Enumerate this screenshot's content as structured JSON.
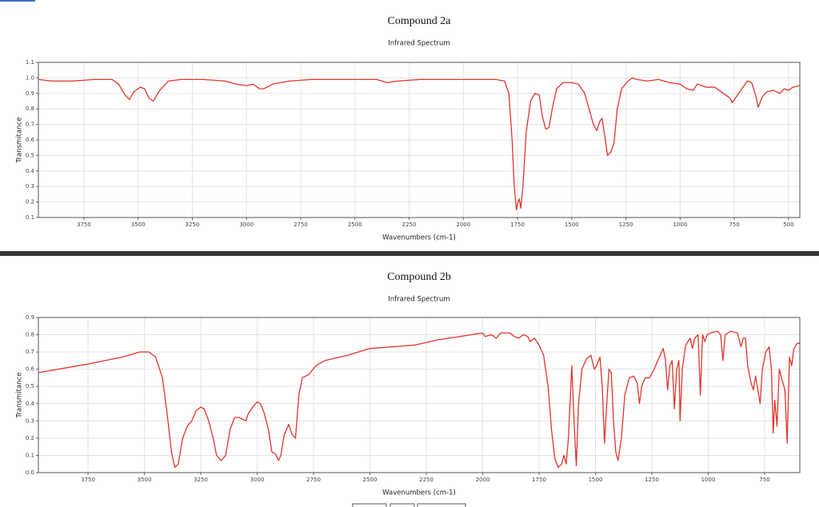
{
  "chart_data": [
    {
      "type": "line",
      "title": "Compound 2a",
      "subtitle": "Infrared Spectrum",
      "x_label": "Wavenumbers (cm-1)",
      "y_label": "Transmitance",
      "color": "#e0352b",
      "grid": true,
      "xlim": [
        3960,
        448
      ],
      "ylim": [
        0.1,
        1.1
      ],
      "xticks": [
        3750,
        3500,
        3250,
        3000,
        2750,
        2500,
        2250,
        2000,
        1750,
        1500,
        1250,
        1000,
        750,
        500
      ],
      "yticks": [
        0.1,
        0.2,
        0.3,
        0.4,
        0.5,
        0.6,
        0.7,
        0.8,
        0.9,
        {
          "value": 1,
          "label": "1.0"
        },
        1.1
      ],
      "x": [
        3960,
        3900,
        3800,
        3700,
        3620,
        3590,
        3560,
        3540,
        3520,
        3490,
        3470,
        3450,
        3430,
        3400,
        3360,
        3300,
        3200,
        3100,
        3050,
        3000,
        2970,
        2940,
        2920,
        2880,
        2800,
        2700,
        2500,
        2400,
        2350,
        2300,
        2200,
        2000,
        1850,
        1810,
        1790,
        1775,
        1765,
        1755,
        1748,
        1742,
        1735,
        1725,
        1710,
        1690,
        1670,
        1650,
        1635,
        1620,
        1605,
        1590,
        1570,
        1540,
        1500,
        1470,
        1440,
        1420,
        1400,
        1385,
        1370,
        1360,
        1345,
        1335,
        1320,
        1305,
        1290,
        1270,
        1240,
        1220,
        1200,
        1150,
        1100,
        1050,
        1000,
        970,
        940,
        920,
        880,
        840,
        800,
        770,
        760,
        730,
        700,
        690,
        670,
        650,
        640,
        620,
        600,
        570,
        540,
        520,
        500,
        480,
        450
      ],
      "values": [
        0.99,
        0.98,
        0.98,
        0.99,
        0.99,
        0.96,
        0.89,
        0.86,
        0.91,
        0.94,
        0.93,
        0.87,
        0.85,
        0.92,
        0.98,
        0.99,
        0.99,
        0.98,
        0.96,
        0.95,
        0.96,
        0.93,
        0.93,
        0.96,
        0.98,
        0.99,
        0.99,
        0.99,
        0.97,
        0.98,
        0.99,
        0.99,
        0.99,
        0.98,
        0.9,
        0.6,
        0.3,
        0.15,
        0.2,
        0.22,
        0.16,
        0.3,
        0.65,
        0.85,
        0.9,
        0.89,
        0.75,
        0.67,
        0.68,
        0.8,
        0.93,
        0.97,
        0.97,
        0.96,
        0.9,
        0.8,
        0.7,
        0.66,
        0.72,
        0.74,
        0.6,
        0.5,
        0.52,
        0.58,
        0.8,
        0.93,
        0.98,
        1.0,
        0.99,
        0.98,
        0.99,
        0.97,
        0.96,
        0.93,
        0.92,
        0.96,
        0.94,
        0.94,
        0.9,
        0.87,
        0.84,
        0.9,
        0.96,
        0.98,
        0.97,
        0.88,
        0.81,
        0.88,
        0.91,
        0.92,
        0.9,
        0.93,
        0.92,
        0.94,
        0.95
      ]
    },
    {
      "type": "line",
      "title": "Compound 2b",
      "subtitle": "Infrared Spectrum",
      "x_label": "Wavenumbers (cm-1)",
      "y_label": "Transmitance",
      "color": "#e0352b",
      "grid": true,
      "xlim": [
        3970,
        594
      ],
      "ylim": [
        0,
        0.9
      ],
      "xticks": [
        3750,
        3500,
        3250,
        3000,
        2750,
        2500,
        2250,
        2000,
        1750,
        1500,
        1250,
        1000,
        750
      ],
      "yticks": [
        {
          "value": 0,
          "label": "0.0"
        },
        0.1,
        0.2,
        0.3,
        0.4,
        0.5,
        0.6,
        0.7,
        0.8,
        0.9
      ],
      "x": [
        3970,
        3750,
        3600,
        3520,
        3480,
        3450,
        3420,
        3400,
        3380,
        3365,
        3350,
        3330,
        3310,
        3290,
        3270,
        3250,
        3235,
        3215,
        3195,
        3180,
        3160,
        3140,
        3120,
        3100,
        3080,
        3050,
        3040,
        3020,
        3000,
        2985,
        2970,
        2950,
        2935,
        2920,
        2905,
        2895,
        2880,
        2860,
        2845,
        2830,
        2815,
        2800,
        2770,
        2740,
        2700,
        2600,
        2500,
        2300,
        2200,
        2100,
        2000,
        1990,
        1960,
        1940,
        1920,
        1880,
        1860,
        1840,
        1820,
        1800,
        1790,
        1770,
        1750,
        1730,
        1710,
        1695,
        1680,
        1665,
        1650,
        1640,
        1630,
        1620,
        1605,
        1595,
        1585,
        1575,
        1560,
        1540,
        1520,
        1505,
        1495,
        1480,
        1470,
        1460,
        1450,
        1440,
        1430,
        1420,
        1410,
        1400,
        1385,
        1370,
        1350,
        1330,
        1315,
        1305,
        1295,
        1280,
        1260,
        1240,
        1220,
        1200,
        1190,
        1180,
        1170,
        1160,
        1150,
        1140,
        1130,
        1125,
        1115,
        1100,
        1080,
        1070,
        1060,
        1045,
        1035,
        1025,
        1015,
        1005,
        990,
        960,
        945,
        935,
        925,
        900,
        870,
        855,
        845,
        835,
        825,
        810,
        800,
        790,
        780,
        770,
        760,
        745,
        730,
        720,
        712,
        705,
        695,
        685,
        675,
        660,
        650,
        640,
        630,
        620,
        605,
        594
      ],
      "values": [
        0.58,
        0.63,
        0.67,
        0.7,
        0.7,
        0.67,
        0.55,
        0.35,
        0.12,
        0.03,
        0.05,
        0.2,
        0.27,
        0.3,
        0.36,
        0.38,
        0.37,
        0.3,
        0.2,
        0.1,
        0.07,
        0.1,
        0.25,
        0.32,
        0.32,
        0.3,
        0.34,
        0.38,
        0.41,
        0.4,
        0.35,
        0.25,
        0.12,
        0.11,
        0.07,
        0.1,
        0.22,
        0.28,
        0.22,
        0.2,
        0.45,
        0.55,
        0.57,
        0.62,
        0.65,
        0.68,
        0.72,
        0.74,
        0.77,
        0.79,
        0.81,
        0.79,
        0.8,
        0.78,
        0.81,
        0.81,
        0.79,
        0.78,
        0.8,
        0.79,
        0.76,
        0.78,
        0.74,
        0.68,
        0.5,
        0.25,
        0.08,
        0.03,
        0.05,
        0.1,
        0.05,
        0.2,
        0.62,
        0.3,
        0.04,
        0.4,
        0.6,
        0.66,
        0.68,
        0.6,
        0.62,
        0.67,
        0.5,
        0.17,
        0.4,
        0.6,
        0.58,
        0.3,
        0.12,
        0.07,
        0.2,
        0.45,
        0.55,
        0.56,
        0.52,
        0.4,
        0.5,
        0.55,
        0.55,
        0.6,
        0.66,
        0.72,
        0.66,
        0.48,
        0.62,
        0.65,
        0.37,
        0.6,
        0.65,
        0.3,
        0.6,
        0.74,
        0.78,
        0.72,
        0.78,
        0.8,
        0.45,
        0.8,
        0.76,
        0.8,
        0.81,
        0.82,
        0.8,
        0.65,
        0.8,
        0.82,
        0.81,
        0.73,
        0.78,
        0.78,
        0.62,
        0.52,
        0.48,
        0.56,
        0.48,
        0.4,
        0.6,
        0.7,
        0.73,
        0.6,
        0.23,
        0.42,
        0.27,
        0.6,
        0.55,
        0.48,
        0.17,
        0.67,
        0.62,
        0.72,
        0.75,
        0.75
      ]
    }
  ]
}
